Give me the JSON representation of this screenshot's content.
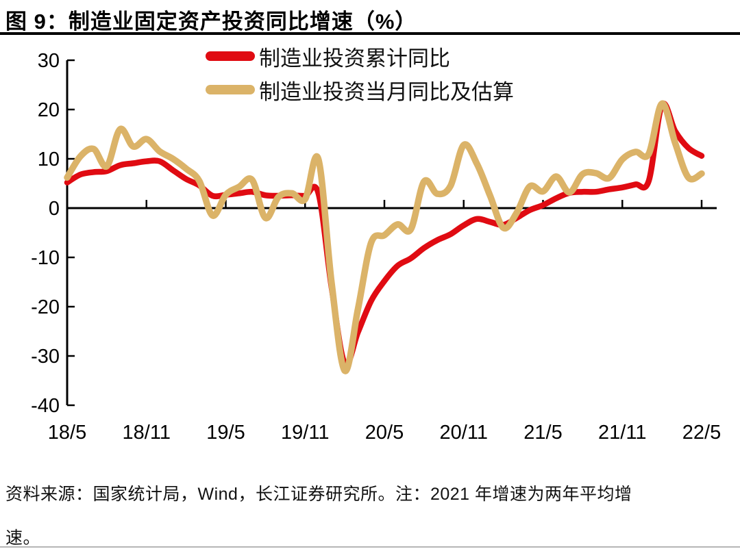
{
  "title": "图 9：制造业固定资产投资同比增速（%）",
  "legend": [
    {
      "label": "制造业投资累计同比",
      "color": "#e00b12"
    },
    {
      "label": "制造业投资当月同比及估算",
      "color": "#dbb368"
    }
  ],
  "footnote": {
    "line1": "资料来源：国家统计局，Wind，长江证券研究所。注：2021 年增速为两年平均增",
    "line2": "速。"
  },
  "chart_data": {
    "type": "line",
    "title": "制造业固定资产投资同比增速（%）",
    "x_unit": "monthly, 2018/5 through 2022/5",
    "x_tick_labels": [
      "18/5",
      "18/11",
      "19/5",
      "19/11",
      "20/5",
      "20/11",
      "21/5",
      "21/11",
      "22/5"
    ],
    "y_ticks": [
      30,
      20,
      10,
      0,
      -10,
      -20,
      -30,
      -40
    ],
    "ylim": [
      -40,
      30
    ],
    "grid": false,
    "legend_position": "top",
    "axis_color": "#000000",
    "note": "2021 年增速为两年平均增速",
    "series": [
      {
        "name": "制造业投资累计同比",
        "color": "#e00b12",
        "stroke_width": 8.5,
        "values": [
          5.2,
          6.8,
          7.3,
          7.5,
          8.7,
          9.1,
          9.5,
          9.5,
          7.7,
          5.9,
          4.6,
          2.5,
          2.7,
          3.0,
          3.3,
          2.6,
          2.5,
          2.6,
          2.5,
          3.1,
          -16.0,
          -31.5,
          -25.2,
          -18.8,
          -14.8,
          -11.7,
          -10.2,
          -8.1,
          -6.5,
          -5.3,
          -3.5,
          -2.2,
          -2.8,
          -3.4,
          -2.0,
          -0.4,
          0.6,
          2.0,
          3.1,
          3.3,
          3.3,
          3.8,
          4.2,
          4.8,
          5.5,
          20.9,
          15.6,
          12.2,
          10.6
        ]
      },
      {
        "name": "制造业投资当月同比及估算",
        "color": "#dbb368",
        "stroke_width": 9.5,
        "values": [
          6.2,
          10.5,
          12.0,
          8.5,
          16.0,
          12.5,
          14.0,
          11.5,
          10.0,
          8.0,
          5.5,
          -1.5,
          2.7,
          4.3,
          5.7,
          -2.0,
          2.3,
          3.0,
          1.8,
          10.0,
          -15.0,
          -33.0,
          -20.5,
          -7.0,
          -5.5,
          -3.3,
          -4.3,
          5.4,
          2.9,
          4.5,
          12.8,
          9.0,
          2.5,
          -4.0,
          -1.0,
          4.4,
          3.4,
          6.4,
          3.2,
          6.9,
          7.1,
          6.1,
          9.9,
          11.4,
          11.0,
          21.2,
          13.2,
          6.2,
          7.0
        ]
      }
    ]
  }
}
